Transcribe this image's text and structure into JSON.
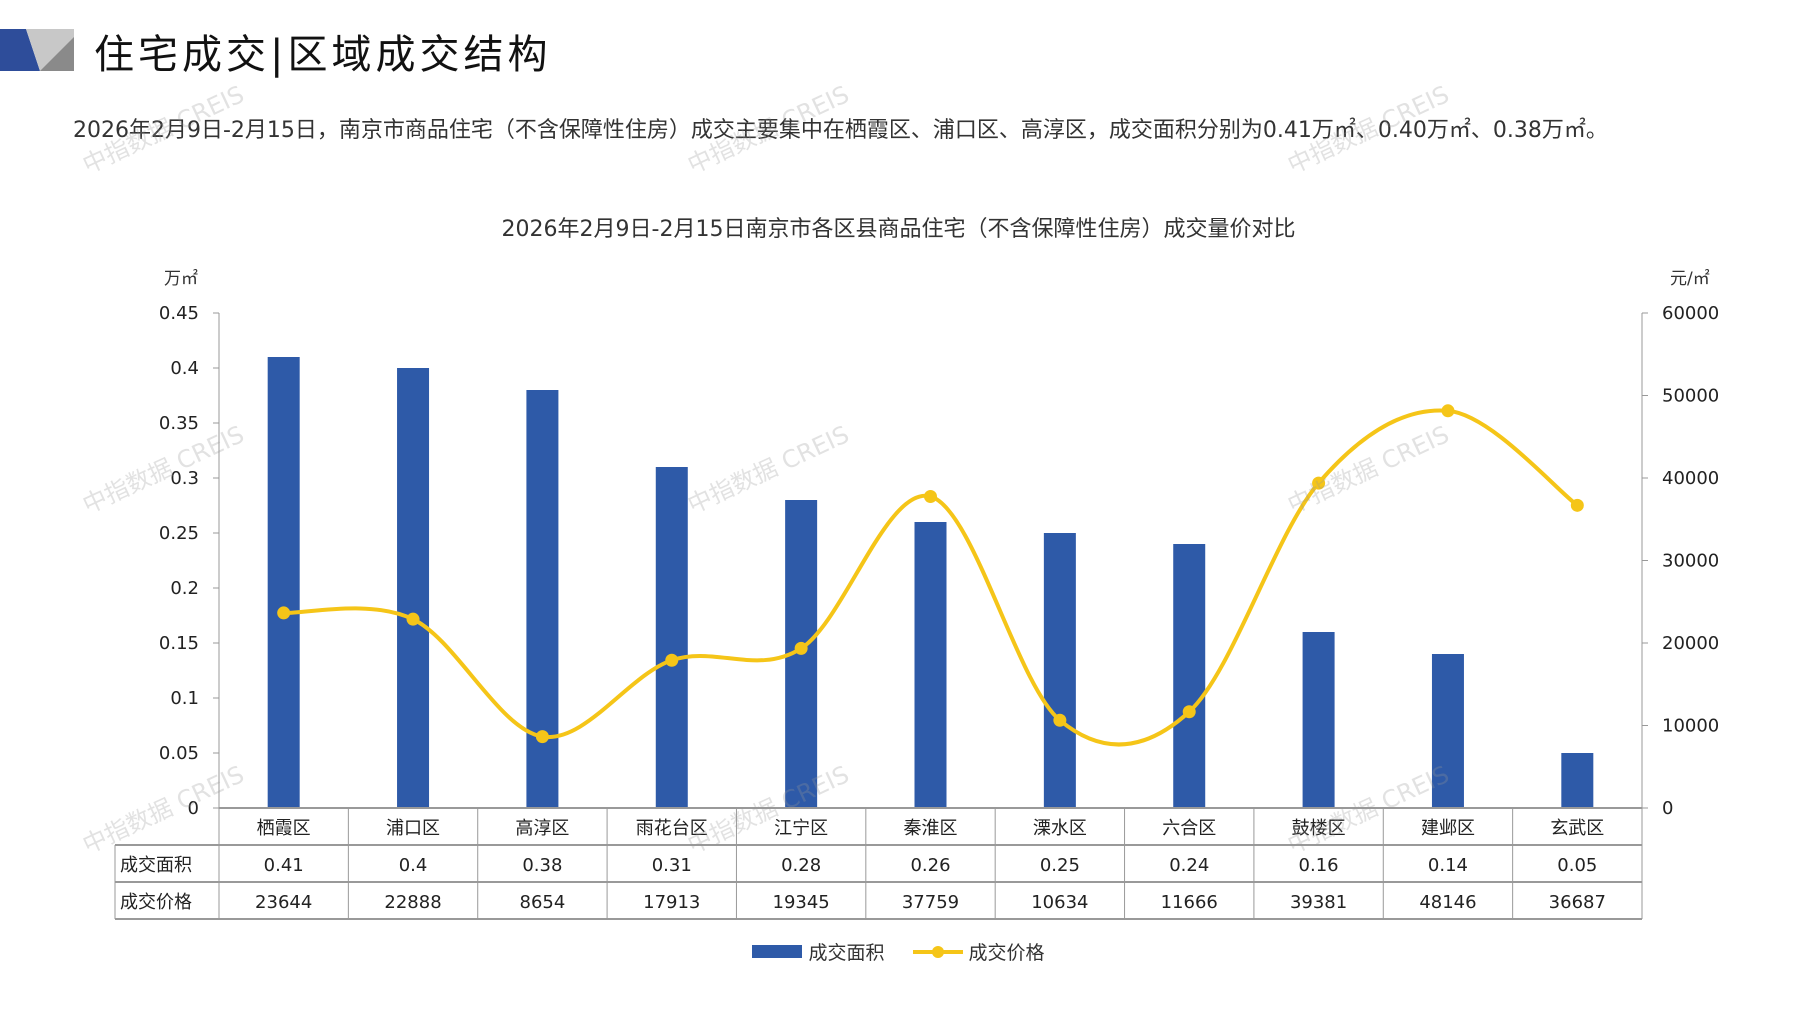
{
  "header": {
    "title": "住宅成交|区域成交结构"
  },
  "summary": "2026年2月9日-2月15日，南京市商品住宅（不含保障性住房）成交主要集中在栖霞区、浦口区、高淳区，成交面积分别为0.41万㎡、0.40万㎡、0.38万㎡。",
  "watermark": "中指数据 CREIS",
  "colors": {
    "bar": "#2e5aa8",
    "line": "#f5c518",
    "header_blue": "#2e4d9a",
    "header_gray": "#a8a8a8"
  },
  "chart_data": {
    "type": "bar+line",
    "title": "2026年2月9日-2月15日南京市各区县商品住宅（不含保障性住房）成交量价对比",
    "ylabel_left": "万㎡",
    "ylabel_right": "元/㎡",
    "ylim_left": [
      0,
      0.45
    ],
    "ylim_right": [
      0,
      60000
    ],
    "yticks_left": [
      "0",
      "0.05",
      "0.1",
      "0.15",
      "0.2",
      "0.25",
      "0.3",
      "0.35",
      "0.4",
      "0.45"
    ],
    "yticks_right": [
      "0",
      "10000",
      "20000",
      "30000",
      "40000",
      "50000",
      "60000"
    ],
    "categories": [
      "栖霞区",
      "浦口区",
      "高淳区",
      "雨花台区",
      "江宁区",
      "秦淮区",
      "溧水区",
      "六合区",
      "鼓楼区",
      "建邺区",
      "玄武区"
    ],
    "series": [
      {
        "name": "成交面积",
        "type": "bar",
        "axis": "left",
        "values": [
          0.41,
          0.4,
          0.38,
          0.31,
          0.28,
          0.26,
          0.25,
          0.24,
          0.16,
          0.14,
          0.05
        ],
        "labels": [
          "0.41",
          "0.4",
          "0.38",
          "0.31",
          "0.28",
          "0.26",
          "0.25",
          "0.24",
          "0.16",
          "0.14",
          "0.05"
        ]
      },
      {
        "name": "成交价格",
        "type": "line",
        "axis": "right",
        "values": [
          23644,
          22888,
          8654,
          17913,
          19345,
          37759,
          10634,
          11666,
          39381,
          48146,
          36687
        ]
      }
    ],
    "legend": "bottom",
    "data_table": true
  }
}
